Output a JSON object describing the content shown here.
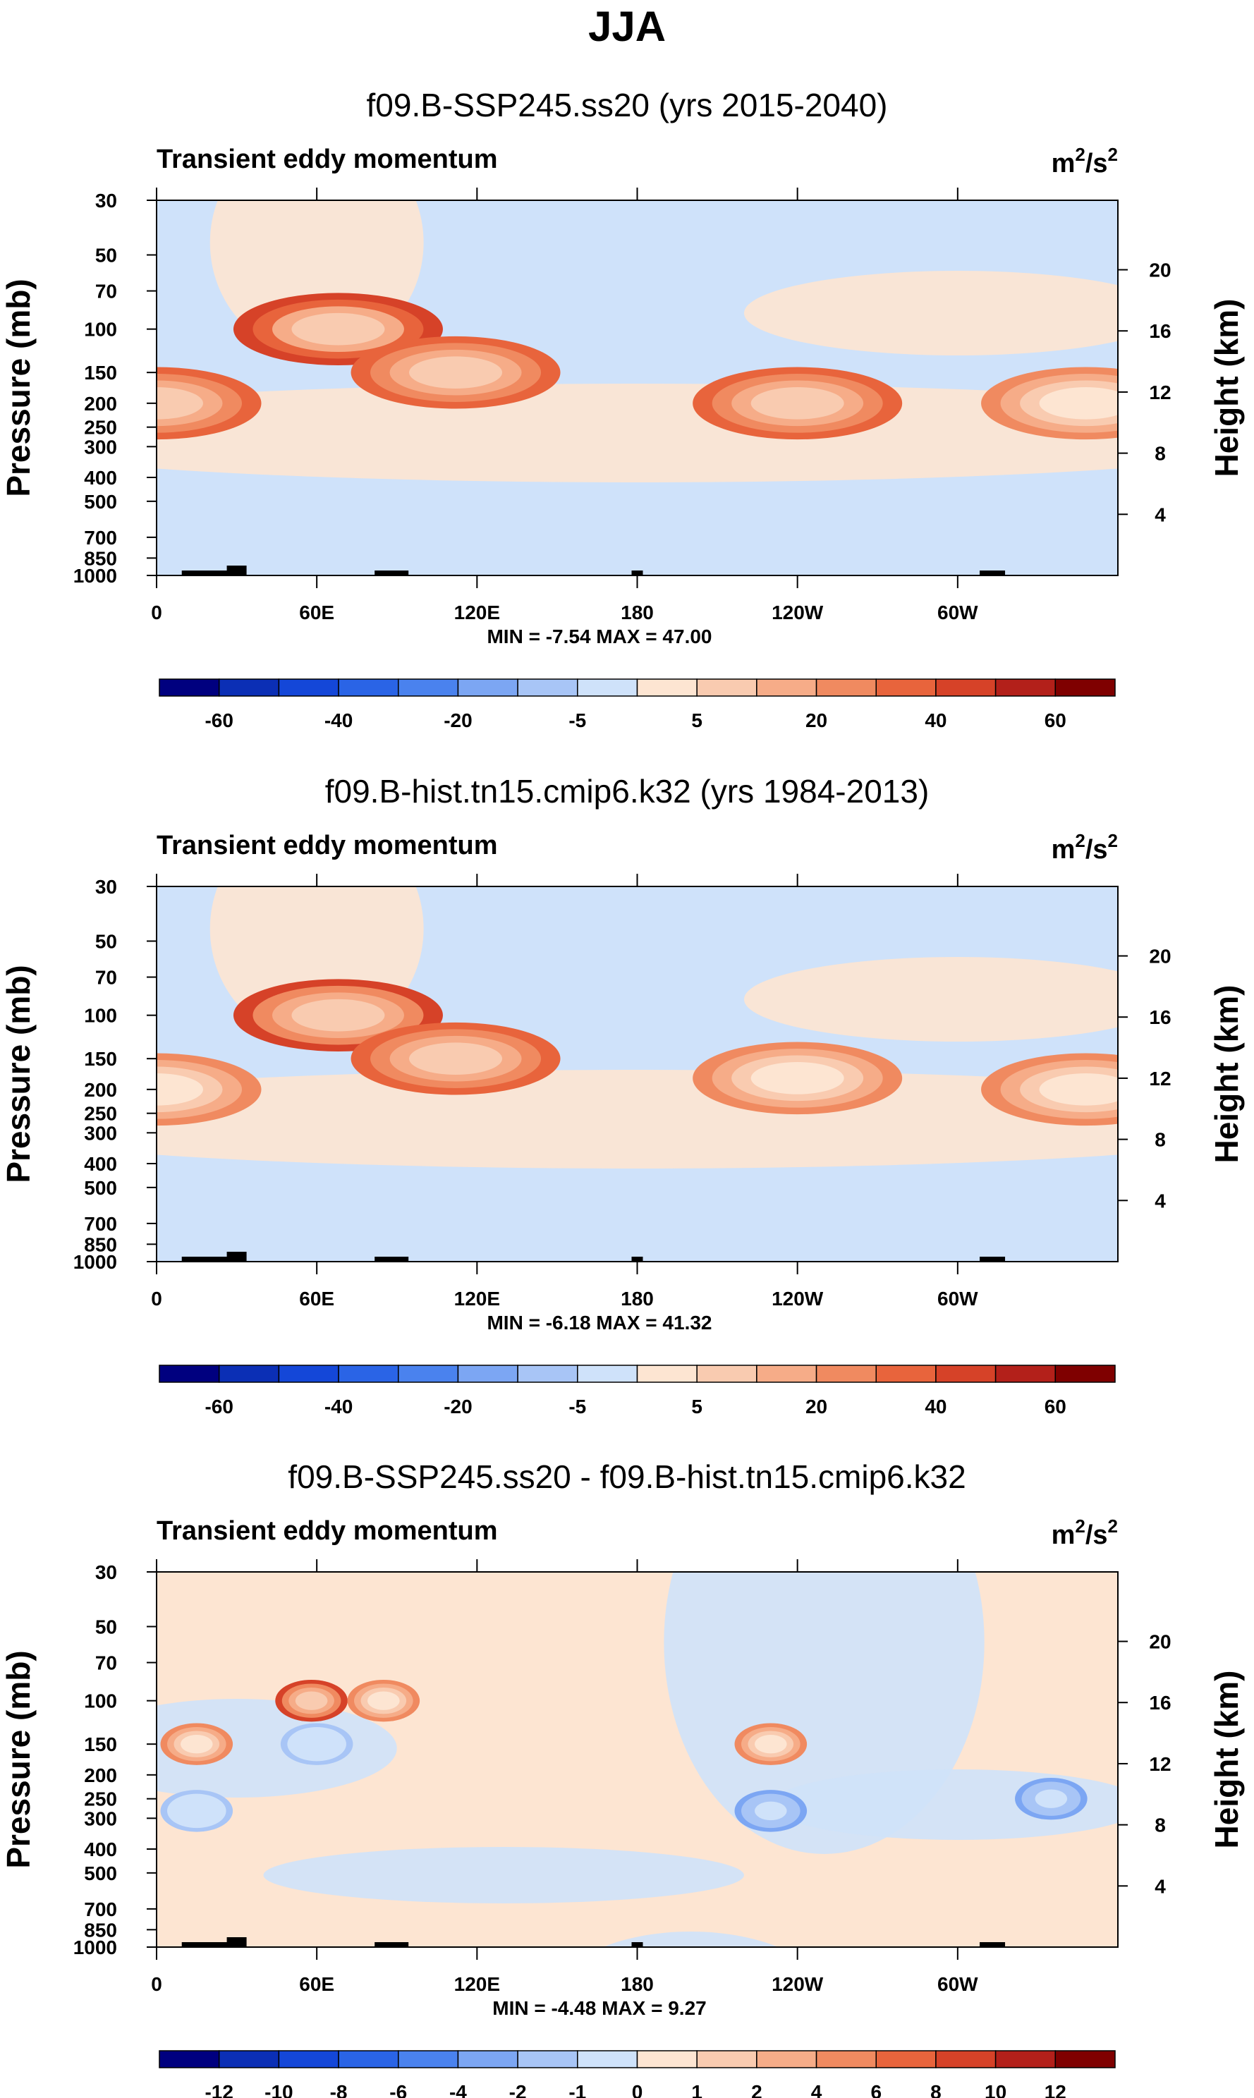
{
  "figure": {
    "title": "JJA"
  },
  "chart_data": [
    {
      "type": "heatmap",
      "title": "f09.B-SSP245.ss20 (yrs 2015-2040)",
      "subtitle": "Transient eddy momentum",
      "units": "m²/s²",
      "units_base": "m",
      "units_sup1": "2",
      "units_mid": "/s",
      "units_sup2": "2",
      "ylabel": "Pressure (mb)",
      "ylabel_right": "Height (km)",
      "xticks": [
        "0",
        "60E",
        "120E",
        "180",
        "120W",
        "60W"
      ],
      "yticks": [
        "30",
        "50",
        "70",
        "100",
        "150",
        "200",
        "250",
        "300",
        "400",
        "500",
        "700",
        "850",
        "1000"
      ],
      "yticks_right": [
        "20",
        "16",
        "12",
        "8",
        "4"
      ],
      "stats": "MIN = -7.54  MAX = 47.00",
      "min": -7.54,
      "max": 47.0,
      "colorbar_labels": [
        "-60",
        "-40",
        "-20",
        "-5",
        "5",
        "20",
        "40",
        "60"
      ],
      "features": [
        {
          "lon": 0,
          "p": 200,
          "value": 32
        },
        {
          "lon": 68,
          "p": 100,
          "value": 44
        },
        {
          "lon": 112,
          "p": 150,
          "value": 36
        },
        {
          "lon": 240,
          "p": 200,
          "value": 32
        },
        {
          "lon": 348,
          "p": 200,
          "value": 30
        }
      ]
    },
    {
      "type": "heatmap",
      "title": "f09.B-hist.tn15.cmip6.k32 (yrs 1984-2013)",
      "subtitle": "Transient eddy momentum",
      "units": "m²/s²",
      "units_base": "m",
      "units_sup1": "2",
      "units_mid": "/s",
      "units_sup2": "2",
      "ylabel": "Pressure (mb)",
      "ylabel_right": "Height (km)",
      "xticks": [
        "0",
        "60E",
        "120E",
        "180",
        "120W",
        "60W"
      ],
      "yticks": [
        "30",
        "50",
        "70",
        "100",
        "150",
        "200",
        "250",
        "300",
        "400",
        "500",
        "700",
        "850",
        "1000"
      ],
      "yticks_right": [
        "20",
        "16",
        "12",
        "8",
        "4"
      ],
      "stats": "MIN = -6.18  MAX = 41.32",
      "min": -6.18,
      "max": 41.32,
      "colorbar_labels": [
        "-60",
        "-40",
        "-20",
        "-5",
        "5",
        "20",
        "40",
        "60"
      ],
      "features": [
        {
          "lon": 0,
          "p": 200,
          "value": 30
        },
        {
          "lon": 68,
          "p": 100,
          "value": 40
        },
        {
          "lon": 112,
          "p": 150,
          "value": 32
        },
        {
          "lon": 240,
          "p": 180,
          "value": 28
        },
        {
          "lon": 348,
          "p": 200,
          "value": 30
        }
      ]
    },
    {
      "type": "heatmap",
      "title": "f09.B-SSP245.ss20 - f09.B-hist.tn15.cmip6.k32",
      "subtitle": "Transient eddy momentum",
      "units": "m²/s²",
      "units_base": "m",
      "units_sup1": "2",
      "units_mid": "/s",
      "units_sup2": "2",
      "ylabel": "Pressure (mb)",
      "ylabel_right": "Height (km)",
      "xticks": [
        "0",
        "60E",
        "120E",
        "180",
        "120W",
        "60W"
      ],
      "yticks": [
        "30",
        "50",
        "70",
        "100",
        "150",
        "200",
        "250",
        "300",
        "400",
        "500",
        "700",
        "850",
        "1000"
      ],
      "yticks_right": [
        "20",
        "16",
        "12",
        "8",
        "4"
      ],
      "stats": "MIN = -4.48  MAX = 9.27",
      "min": -4.48,
      "max": 9.27,
      "colorbar_labels": [
        "-12",
        "-10",
        "-8",
        "-6",
        "-4",
        "-2",
        "-1",
        "0",
        "1",
        "2",
        "4",
        "6",
        "8",
        "10",
        "12"
      ],
      "features": [
        {
          "lon": 58,
          "p": 100,
          "value": 8
        },
        {
          "lon": 85,
          "p": 100,
          "value": 6
        },
        {
          "lon": 15,
          "p": 150,
          "value": 6
        },
        {
          "lon": 230,
          "p": 150,
          "value": 6
        },
        {
          "lon": 230,
          "p": 280,
          "value": -4
        },
        {
          "lon": 335,
          "p": 250,
          "value": -4
        },
        {
          "lon": 15,
          "p": 280,
          "value": -2
        },
        {
          "lon": 60,
          "p": 150,
          "value": -2
        }
      ]
    }
  ],
  "colors": {
    "levels_a": [
      "#00007f",
      "#0b2fb5",
      "#1447d8",
      "#2a64e6",
      "#4a82ee",
      "#7ca6f3",
      "#a8c5f6",
      "#cfe2fa",
      "#fde5d2",
      "#f9cbb0",
      "#f6ac88",
      "#f08a60",
      "#e8643c",
      "#d64228",
      "#b3201a",
      "#7f0000"
    ],
    "levels_b": [
      "#00007f",
      "#0b2fb5",
      "#1447d8",
      "#2a64e6",
      "#4a82ee",
      "#7ca6f3",
      "#a8c5f6",
      "#cfe2fa",
      "#fde5d2",
      "#f9cbb0",
      "#f6ac88",
      "#f08a60",
      "#e8643c",
      "#d64228",
      "#b3201a",
      "#7f0000"
    ],
    "topography": "#000000"
  }
}
